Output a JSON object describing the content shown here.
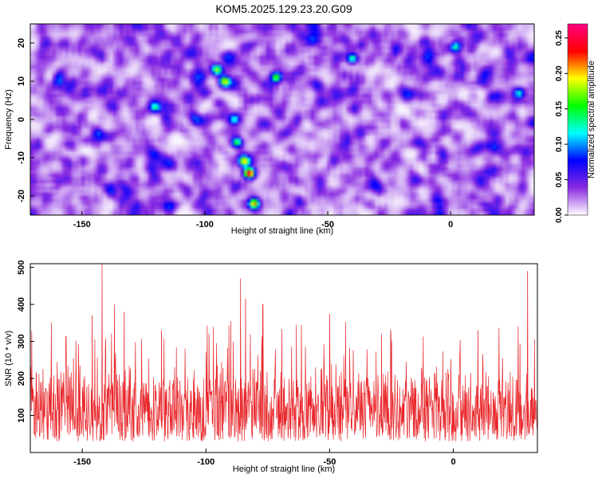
{
  "figure": {
    "title": "KOM5.2025.129.23.20.G09"
  },
  "chart_data": [
    {
      "type": "heatmap",
      "title": "KOM5.2025.129.23.20.G09",
      "xlabel": "Height of straight line (km)",
      "ylabel": "Frequency (Hz)",
      "xlim": [
        -171,
        34
      ],
      "ylim": [
        -25,
        25
      ],
      "x_ticks": [
        -150,
        -100,
        -50,
        0
      ],
      "x_tick_labels": [
        "-150",
        "-100",
        "-50",
        "0"
      ],
      "y_ticks": [
        20,
        10,
        0,
        -10,
        -20
      ],
      "y_tick_labels": [
        "20",
        "10",
        "0",
        "-10",
        "-20"
      ],
      "colorbar": {
        "label": "Normalized spectral amplitude",
        "range": [
          0.0,
          0.27
        ],
        "ticks": [
          0.0,
          0.05,
          0.1,
          0.15,
          0.2,
          0.25
        ],
        "tick_labels": [
          "0.00",
          "0.05",
          "0.10",
          "0.15",
          "0.20",
          "0.25"
        ],
        "colors": [
          "#ffffff",
          "#8a2be2",
          "#0000ff",
          "#00ffff",
          "#00ff00",
          "#ffff00",
          "#ff0000",
          "#ff0080"
        ]
      },
      "background_level": 0.035,
      "features": [
        {
          "x": -95,
          "y": 13,
          "value": 0.16
        },
        {
          "x": -92,
          "y": 10,
          "value": 0.17
        },
        {
          "x": -88,
          "y": 0,
          "value": 0.11
        },
        {
          "x": -87,
          "y": -6,
          "value": 0.15
        },
        {
          "x": -84,
          "y": -11,
          "value": 0.19
        },
        {
          "x": -82,
          "y": -14,
          "value": 0.25
        },
        {
          "x": -80,
          "y": -22,
          "value": 0.18
        },
        {
          "x": -71,
          "y": 11,
          "value": 0.16
        },
        {
          "x": -40,
          "y": 16,
          "value": 0.13
        },
        {
          "x": 2,
          "y": 19,
          "value": 0.12
        },
        {
          "x": -120,
          "y": 3,
          "value": 0.1
        },
        {
          "x": 28,
          "y": 7,
          "value": 0.11
        }
      ]
    },
    {
      "type": "line",
      "xlabel": "Height of straight line (km)",
      "ylabel": "SNR (10 * v/v)",
      "xlim": [
        -171,
        34
      ],
      "ylim": [
        0,
        510
      ],
      "x_ticks": [
        -150,
        -100,
        -50,
        0
      ],
      "x_tick_labels": [
        "-150",
        "-100",
        "-50",
        "0"
      ],
      "y_ticks": [
        100,
        200,
        300,
        400,
        500
      ],
      "y_tick_labels": [
        "100",
        "200",
        "300",
        "400",
        "500"
      ],
      "color": "#e8262a",
      "typical_range": [
        30,
        250
      ],
      "peaks": [
        {
          "x": -142,
          "y": 510
        },
        {
          "x": -146,
          "y": 370
        },
        {
          "x": -137,
          "y": 400
        },
        {
          "x": -133,
          "y": 380
        },
        {
          "x": -118,
          "y": 330
        },
        {
          "x": -86,
          "y": 470
        },
        {
          "x": -84,
          "y": 415
        },
        {
          "x": -77,
          "y": 400
        },
        {
          "x": -50,
          "y": 375
        },
        {
          "x": -29,
          "y": 320
        },
        {
          "x": 10,
          "y": 330
        },
        {
          "x": 30,
          "y": 490
        }
      ]
    }
  ]
}
